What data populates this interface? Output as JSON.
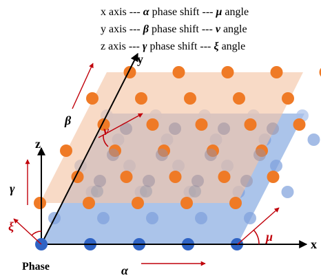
{
  "legend": {
    "lines": [
      {
        "axis": "x axis ---",
        "phase_symbol": "α",
        "middle": "phase shift ---",
        "angle_symbol": "μ",
        "end": "angle"
      },
      {
        "axis": "y axis ---",
        "phase_symbol": "β",
        "middle": "phase shift ---",
        "angle_symbol": "ν",
        "end": "angle"
      },
      {
        "axis": "z axis ---",
        "phase_symbol": "γ",
        "middle": "phase shift ---",
        "angle_symbol": "ξ",
        "end": "angle"
      }
    ]
  },
  "axes": {
    "x": "x",
    "y": "y",
    "z": "z"
  },
  "symbols": {
    "alpha": "α",
    "beta": "β",
    "gamma": "γ",
    "mu": "μ",
    "nu": "ν",
    "xi": "ξ"
  },
  "origin_label": "Phase",
  "colors": {
    "orange_plane": "#f5c6a8",
    "blue_plane": "#8fb0e3",
    "orange_dot": "#ef7a26",
    "blue_dot": "#2f63c4",
    "red_arrow": "#c0000a",
    "axis": "#000000"
  }
}
